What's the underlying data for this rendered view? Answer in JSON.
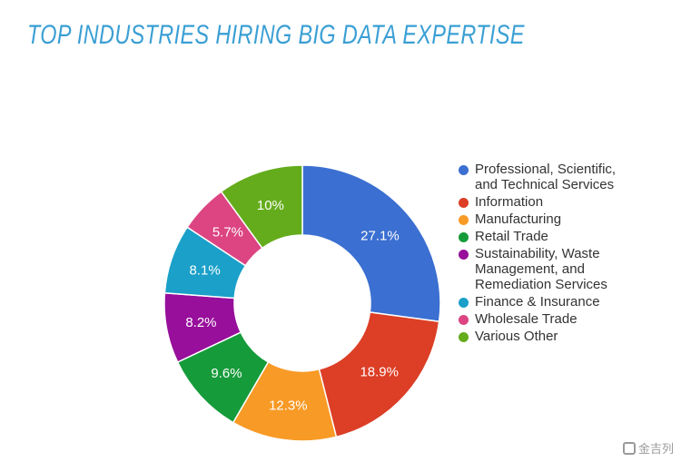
{
  "title": "TOP INDUSTRIES HIRING BIG DATA EXPERTISE",
  "watermark": "金吉列",
  "chart_data": {
    "type": "pie",
    "donut": true,
    "legend_position": "right",
    "series": [
      {
        "name": "Professional, Scientific,\nand Technical Services",
        "value": 27.1,
        "label": "27.1%",
        "color": "#3b6fd1"
      },
      {
        "name": "Information",
        "value": 18.9,
        "label": "18.9%",
        "color": "#dc3e26"
      },
      {
        "name": "Manufacturing",
        "value": 12.3,
        "label": "12.3%",
        "color": "#f89a26"
      },
      {
        "name": "Retail Trade",
        "value": 9.6,
        "label": "9.6%",
        "color": "#169b3a"
      },
      {
        "name": "Sustainability, Waste\nManagement, and\nRemediation Services",
        "value": 8.2,
        "label": "8.2%",
        "color": "#970f9b"
      },
      {
        "name": "Finance & Insurance",
        "value": 8.1,
        "label": "8.1%",
        "color": "#1aa0c9"
      },
      {
        "name": "Wholesale Trade",
        "value": 5.7,
        "label": "5.7%",
        "color": "#dc4482"
      },
      {
        "name": "Various Other",
        "value": 10,
        "label": "10%",
        "color": "#64ac1b"
      }
    ]
  }
}
